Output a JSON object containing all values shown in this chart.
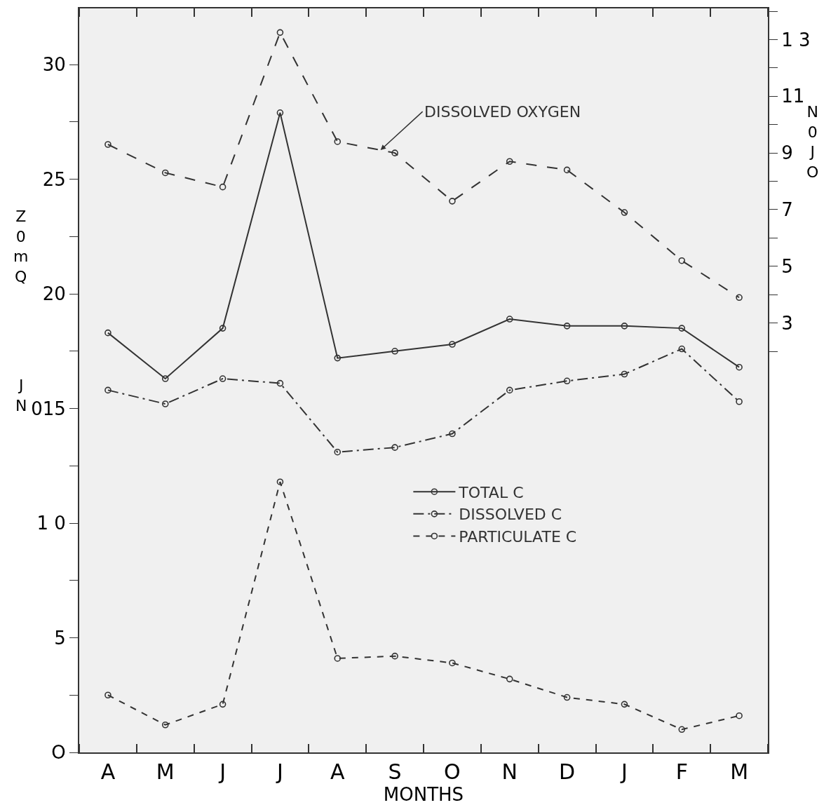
{
  "chart_data": {
    "type": "line",
    "xlabel": "MONTHS",
    "categories": [
      "A",
      "M",
      "J",
      "J",
      "A",
      "S",
      "O",
      "N",
      "D",
      "J",
      "F",
      "M"
    ],
    "series": [
      {
        "name": "TOTAL C",
        "color": "#333333",
        "line_style": "solid",
        "values": [
          18.3,
          16.3,
          18.5,
          27.9,
          17.2,
          17.5,
          17.8,
          18.9,
          18.6,
          18.6,
          18.5,
          16.8
        ]
      },
      {
        "name": "DISSOLVED C",
        "color": "#333333",
        "line_style": "dashdot",
        "values": [
          15.8,
          15.2,
          16.3,
          16.1,
          13.1,
          13.3,
          13.9,
          15.8,
          16.2,
          16.5,
          17.6,
          15.3
        ]
      },
      {
        "name": "PARTICULATE C",
        "color": "#333333",
        "line_style": "dotted",
        "values": [
          2.5,
          1.2,
          2.1,
          11.8,
          4.1,
          4.2,
          3.9,
          3.2,
          2.4,
          2.1,
          1.0,
          1.6
        ]
      },
      {
        "name": "DISSOLVED OXYGEN",
        "color": "#333333",
        "line_style": "dashed",
        "axis": "y2",
        "values": [
          9.3,
          8.3,
          7.8,
          13.25,
          9.4,
          9.0,
          7.3,
          8.7,
          8.4,
          6.9,
          5.2,
          3.9
        ]
      }
    ],
    "ylim": [
      0,
      32.45
    ],
    "yticks": [
      {
        "value": 0,
        "label": "O"
      },
      {
        "value": 2.5,
        "label": null
      },
      5,
      {
        "value": 7.5,
        "label": null
      },
      {
        "value": 10,
        "label": "1 0"
      },
      {
        "value": 12.5,
        "label": null
      },
      {
        "value": 15,
        "label": "015"
      },
      {
        "value": 17.5,
        "label": null
      },
      20,
      {
        "value": 22.5,
        "label": null
      },
      25,
      {
        "value": 27.5,
        "label": null
      },
      30
    ],
    "y2lim": [
      -12.15,
      14.1
    ],
    "y2ticks": [
      {
        "value": 2,
        "label": null
      },
      3,
      {
        "value": 4,
        "label": null
      },
      5,
      {
        "value": 6,
        "label": null
      },
      7,
      {
        "value": 8,
        "label": null
      },
      9,
      {
        "value": 10,
        "label": null
      },
      {
        "value": 11,
        "label": "11"
      },
      {
        "value": 12,
        "label": null
      },
      {
        "value": 13,
        "label": "1 3"
      },
      {
        "value": 14,
        "label": null
      }
    ],
    "annotations": [
      "Z0mQ",
      "JN",
      "N0JO"
    ],
    "marker": "circle",
    "legend": "center",
    "grid": false
  }
}
